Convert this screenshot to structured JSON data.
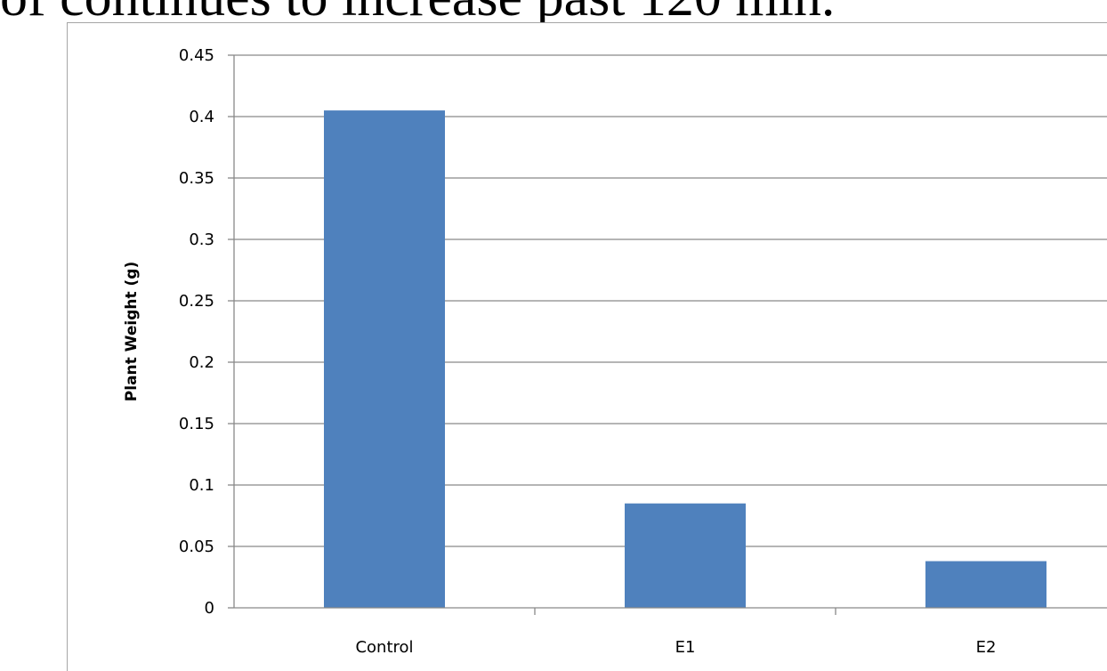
{
  "page": {
    "heading_text": "of continues to increase past 120 min."
  },
  "chart_data": {
    "type": "bar",
    "title": "",
    "xlabel": "",
    "ylabel": "Plant Weight (g)",
    "categories": [
      "Control",
      "E1",
      "E2"
    ],
    "values": [
      0.405,
      0.085,
      0.038
    ],
    "ylim": [
      0,
      0.45
    ],
    "yticks": [
      "0",
      "0.05",
      "0.1",
      "0.15",
      "0.2",
      "0.25",
      "0.3",
      "0.35",
      "0.4",
      "0.45"
    ],
    "grid": true,
    "legend": "none",
    "bar_color": "#4f81bd"
  }
}
